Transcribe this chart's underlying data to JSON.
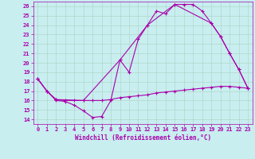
{
  "xlabel": "Windchill (Refroidissement éolien,°C)",
  "xlim": [
    -0.5,
    23.5
  ],
  "ylim": [
    13.5,
    26.5
  ],
  "xticks": [
    0,
    1,
    2,
    3,
    4,
    5,
    6,
    7,
    8,
    9,
    10,
    11,
    12,
    13,
    14,
    15,
    16,
    17,
    18,
    19,
    20,
    21,
    22,
    23
  ],
  "yticks": [
    14,
    15,
    16,
    17,
    18,
    19,
    20,
    21,
    22,
    23,
    24,
    25,
    26
  ],
  "bg_color": "#c8eef0",
  "grid_color": "#b0d8c8",
  "line_color": "#aa00aa",
  "series1": [
    [
      0,
      18.3
    ],
    [
      1,
      17.0
    ],
    [
      2,
      16.0
    ],
    [
      3,
      15.9
    ],
    [
      4,
      15.5
    ],
    [
      5,
      14.9
    ],
    [
      6,
      14.2
    ],
    [
      7,
      14.3
    ],
    [
      8,
      16.0
    ],
    [
      9,
      20.3
    ],
    [
      10,
      19.0
    ],
    [
      11,
      22.5
    ],
    [
      12,
      24.0
    ],
    [
      13,
      25.5
    ],
    [
      14,
      25.2
    ],
    [
      15,
      26.2
    ],
    [
      16,
      26.2
    ],
    [
      17,
      26.2
    ],
    [
      18,
      25.5
    ],
    [
      19,
      24.2
    ],
    [
      20,
      22.8
    ],
    [
      21,
      21.0
    ],
    [
      22,
      19.3
    ],
    [
      23,
      17.3
    ]
  ],
  "series2": [
    [
      0,
      18.3
    ],
    [
      1,
      17.0
    ],
    [
      2,
      16.1
    ],
    [
      3,
      16.0
    ],
    [
      4,
      16.0
    ],
    [
      5,
      16.0
    ],
    [
      6,
      16.0
    ],
    [
      7,
      16.0
    ],
    [
      8,
      16.1
    ],
    [
      9,
      16.3
    ],
    [
      10,
      16.4
    ],
    [
      11,
      16.5
    ],
    [
      12,
      16.6
    ],
    [
      13,
      16.8
    ],
    [
      14,
      16.9
    ],
    [
      15,
      17.0
    ],
    [
      16,
      17.1
    ],
    [
      17,
      17.2
    ],
    [
      18,
      17.3
    ],
    [
      19,
      17.4
    ],
    [
      20,
      17.5
    ],
    [
      21,
      17.5
    ],
    [
      22,
      17.4
    ],
    [
      23,
      17.3
    ]
  ],
  "series3": [
    [
      0,
      18.3
    ],
    [
      1,
      17.0
    ],
    [
      2,
      16.1
    ],
    [
      5,
      16.0
    ],
    [
      9,
      20.3
    ],
    [
      12,
      24.0
    ],
    [
      15,
      26.2
    ],
    [
      19,
      24.2
    ],
    [
      20,
      22.8
    ],
    [
      21,
      21.0
    ],
    [
      22,
      19.3
    ],
    [
      23,
      17.3
    ]
  ]
}
